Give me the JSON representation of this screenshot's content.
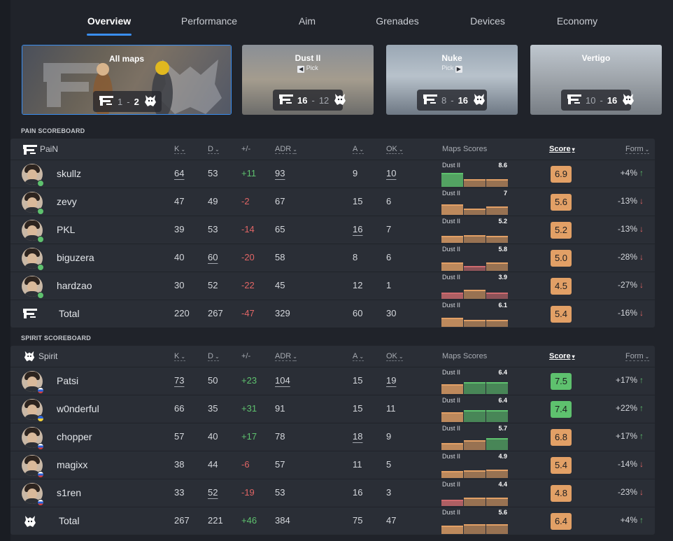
{
  "tabs": [
    "Overview",
    "Performance",
    "Aim",
    "Grenades",
    "Devices",
    "Economy"
  ],
  "maps": [
    {
      "title": "All maps",
      "pick": "",
      "pain": "1",
      "spirit": "2",
      "winner": "spirit"
    },
    {
      "title": "Dust II",
      "pick": "Pick",
      "pick_side": "left",
      "pain": "16",
      "spirit": "12",
      "winner": "pain"
    },
    {
      "title": "Nuke",
      "pick": "Pick",
      "pick_side": "right",
      "pain": "8",
      "spirit": "16",
      "winner": "spirit"
    },
    {
      "title": "Vertigo",
      "pick": "",
      "pain": "10",
      "spirit": "16",
      "winner": "spirit"
    }
  ],
  "columns": {
    "k": "K",
    "d": "D",
    "pm": "+/-",
    "adr": "ADR",
    "a": "A",
    "ok": "OK",
    "maps": "Maps Scores",
    "score": "Score",
    "form": "Form"
  },
  "colors": {
    "green": "#5ec16e",
    "orange": "#e2a066",
    "red": "#cf6b6f",
    "accent": "#3a8ef0"
  },
  "pain": {
    "section": "PAIN SCOREBOARD",
    "team": "PaiN",
    "rows": [
      {
        "name": "skullz",
        "k": "64",
        "d": "53",
        "pm": "+11",
        "adr": "93",
        "a": "9",
        "ok": "10",
        "map": "Dust II",
        "map_score": "8.6",
        "bars": [
          "green",
          "orange",
          "orange"
        ],
        "bar_levels": [
          1.0,
          0.55,
          0.55
        ],
        "score": "6.9",
        "score_color": "orange",
        "form": "+4%",
        "form_dir": "up",
        "ul": [
          "k",
          "adr",
          "ok"
        ]
      },
      {
        "name": "zevy",
        "k": "47",
        "d": "49",
        "pm": "-2",
        "adr": "67",
        "a": "15",
        "ok": "6",
        "map": "Dust II",
        "map_score": "7",
        "bars": [
          "orange",
          "orange",
          "orange"
        ],
        "bar_levels": [
          0.75,
          0.45,
          0.6
        ],
        "score": "5.6",
        "score_color": "orange",
        "form": "-13%",
        "form_dir": "down",
        "ul": []
      },
      {
        "name": "PKL",
        "k": "39",
        "d": "53",
        "pm": "-14",
        "adr": "65",
        "a": "16",
        "ok": "7",
        "map": "Dust II",
        "map_score": "5.2",
        "bars": [
          "orange",
          "orange",
          "orange"
        ],
        "bar_levels": [
          0.5,
          0.55,
          0.5
        ],
        "score": "5.2",
        "score_color": "orange",
        "form": "-13%",
        "form_dir": "down",
        "ul": [
          "a"
        ]
      },
      {
        "name": "biguzera",
        "k": "40",
        "d": "60",
        "pm": "-20",
        "adr": "58",
        "a": "8",
        "ok": "6",
        "map": "Dust II",
        "map_score": "5.8",
        "bars": [
          "orange",
          "red",
          "orange"
        ],
        "bar_levels": [
          0.6,
          0.35,
          0.6
        ],
        "score": "5.0",
        "score_color": "orange",
        "form": "-28%",
        "form_dir": "down",
        "ul": [
          "d"
        ]
      },
      {
        "name": "hardzao",
        "k": "30",
        "d": "52",
        "pm": "-22",
        "adr": "45",
        "a": "12",
        "ok": "1",
        "map": "Dust II",
        "map_score": "3.9",
        "bars": [
          "red",
          "orange",
          "red"
        ],
        "bar_levels": [
          0.45,
          0.65,
          0.45
        ],
        "score": "4.5",
        "score_color": "orange",
        "form": "-27%",
        "form_dir": "down",
        "ul": []
      }
    ],
    "total": {
      "name": "Total",
      "k": "220",
      "d": "267",
      "pm": "-47",
      "adr": "329",
      "a": "60",
      "ok": "30",
      "map": "Dust II",
      "map_score": "6.1",
      "bars": [
        "orange",
        "orange",
        "orange"
      ],
      "bar_levels": [
        0.65,
        0.5,
        0.5
      ],
      "score": "5.4",
      "score_color": "orange",
      "form": "-16%",
      "form_dir": "down",
      "ul": []
    }
  },
  "spirit": {
    "section": "SPIRIT SCOREBOARD",
    "team": "Spirit",
    "rows": [
      {
        "name": "Patsi",
        "k": "73",
        "d": "50",
        "pm": "+23",
        "adr": "104",
        "a": "15",
        "ok": "19",
        "map": "Dust II",
        "map_score": "6.4",
        "bars": [
          "orange",
          "green",
          "green"
        ],
        "bar_levels": [
          0.7,
          0.85,
          0.85
        ],
        "score": "7.5",
        "score_color": "green",
        "form": "+17%",
        "form_dir": "up",
        "ul": [
          "k",
          "adr",
          "ok"
        ]
      },
      {
        "name": "w0nderful",
        "k": "66",
        "d": "35",
        "pm": "+31",
        "adr": "91",
        "a": "15",
        "ok": "11",
        "map": "Dust II",
        "map_score": "6.4",
        "bars": [
          "orange",
          "green",
          "green"
        ],
        "bar_levels": [
          0.7,
          0.85,
          0.85
        ],
        "score": "7.4",
        "score_color": "green",
        "form": "+22%",
        "form_dir": "up",
        "ul": []
      },
      {
        "name": "chopper",
        "k": "57",
        "d": "40",
        "pm": "+17",
        "adr": "78",
        "a": "18",
        "ok": "9",
        "map": "Dust II",
        "map_score": "5.7",
        "bars": [
          "orange",
          "orange",
          "green"
        ],
        "bar_levels": [
          0.5,
          0.7,
          0.85
        ],
        "score": "6.8",
        "score_color": "orange",
        "form": "+17%",
        "form_dir": "up",
        "ul": [
          "a"
        ]
      },
      {
        "name": "magixx",
        "k": "38",
        "d": "44",
        "pm": "-6",
        "adr": "57",
        "a": "11",
        "ok": "5",
        "map": "Dust II",
        "map_score": "4.9",
        "bars": [
          "orange",
          "orange",
          "orange"
        ],
        "bar_levels": [
          0.5,
          0.55,
          0.6
        ],
        "score": "5.4",
        "score_color": "orange",
        "form": "-14%",
        "form_dir": "down",
        "ul": []
      },
      {
        "name": "s1ren",
        "k": "33",
        "d": "52",
        "pm": "-19",
        "adr": "53",
        "a": "16",
        "ok": "3",
        "map": "Dust II",
        "map_score": "4.4",
        "bars": [
          "red",
          "orange",
          "orange"
        ],
        "bar_levels": [
          0.45,
          0.6,
          0.6
        ],
        "score": "4.8",
        "score_color": "orange",
        "form": "-23%",
        "form_dir": "down",
        "ul": [
          "d"
        ]
      }
    ],
    "total": {
      "name": "Total",
      "k": "267",
      "d": "221",
      "pm": "+46",
      "adr": "384",
      "a": "75",
      "ok": "47",
      "map": "Dust II",
      "map_score": "5.6",
      "bars": [
        "orange",
        "orange",
        "orange"
      ],
      "bar_levels": [
        0.6,
        0.7,
        0.7
      ],
      "score": "6.4",
      "score_color": "orange",
      "form": "+4%",
      "form_dir": "up",
      "ul": []
    }
  }
}
